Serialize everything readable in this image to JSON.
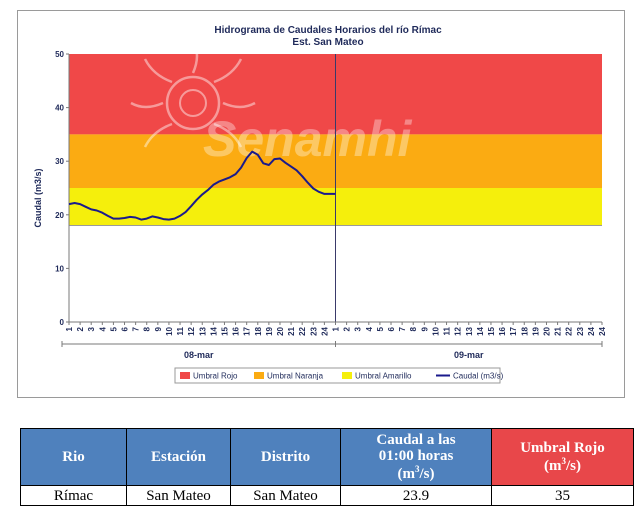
{
  "chart_data": {
    "type": "line",
    "title": "Hidrograma de Caudales Horarios del río Rímac",
    "subtitle": "Est. San Mateo",
    "xlabel": "",
    "ylabel": "Caudal (m3/s)",
    "ylim": [
      0,
      50
    ],
    "yticks": [
      0,
      10,
      20,
      30,
      40,
      50
    ],
    "x_tick_labels": [
      "1",
      "2",
      "3",
      "4",
      "5",
      "6",
      "7",
      "8",
      "9",
      "10",
      "11",
      "12",
      "13",
      "14",
      "15",
      "16",
      "17",
      "18",
      "19",
      "20",
      "21",
      "22",
      "23",
      "24",
      "1",
      "2",
      "3",
      "4",
      "5",
      "6",
      "7",
      "8",
      "9",
      "10",
      "11",
      "12",
      "13",
      "14",
      "15",
      "16",
      "17",
      "18",
      "19",
      "20",
      "21",
      "22",
      "23",
      "24"
    ],
    "day_labels": [
      "08-mar",
      "09-mar"
    ],
    "watermark": "Senamhi",
    "thresholds": [
      {
        "name": "Umbral Rojo",
        "from": 35,
        "to": 50,
        "color": "#f04848"
      },
      {
        "name": "Umbral Naranja",
        "from": 25,
        "to": 35,
        "color": "#fbab12"
      },
      {
        "name": "Umbral Amarillo",
        "from": 18,
        "to": 25,
        "color": "#f5ef0c"
      }
    ],
    "series": [
      {
        "name": "Caudal (m3/s)",
        "color": "#1a1a8c",
        "x": [
          1,
          1.5,
          2,
          2.5,
          3,
          3.5,
          4,
          4.5,
          5,
          5.5,
          6,
          6.5,
          7,
          7.5,
          8,
          8.5,
          9,
          9.5,
          10,
          10.5,
          11,
          11.5,
          12,
          12.5,
          13,
          13.5,
          14,
          14.5,
          15,
          15.5,
          16,
          16.5,
          17,
          17.5,
          18,
          18.5,
          19,
          19.5,
          20,
          20.5,
          21,
          21.5,
          22,
          22.5,
          23,
          23.5,
          24,
          24.5,
          25
        ],
        "values": [
          22,
          22.2,
          22,
          21.5,
          21,
          20.8,
          20.4,
          19.8,
          19.3,
          19.3,
          19.4,
          19.6,
          19.5,
          19.1,
          19.3,
          19.7,
          19.5,
          19.2,
          19.1,
          19.3,
          19.8,
          20.5,
          21.6,
          22.8,
          23.8,
          24.6,
          25.6,
          26.2,
          26.6,
          27.0,
          27.6,
          28.8,
          30.6,
          31.8,
          31.2,
          29.6,
          29.3,
          30.4,
          30.5,
          29.7,
          29.0,
          28.3,
          27.2,
          26.0,
          24.9,
          24.3,
          23.9,
          23.9,
          23.9
        ]
      }
    ]
  },
  "legend": [
    {
      "label": "Umbral Rojo",
      "color": "#f04848",
      "kind": "box"
    },
    {
      "label": "Umbral Naranja",
      "color": "#fbab12",
      "kind": "box"
    },
    {
      "label": "Umbral Amarillo",
      "color": "#f5ef0c",
      "kind": "box"
    },
    {
      "label": "Caudal (m3/s)",
      "color": "#1a1a8c",
      "kind": "line"
    }
  ],
  "table": {
    "headers": {
      "rio": "Rio",
      "estacion": "Estación",
      "distrito": "Distrito",
      "caudal_line1": "Caudal a las",
      "caudal_line2": "01:00 horas",
      "caudal_unit_pre": "(m",
      "caudal_unit_sup": "3",
      "caudal_unit_post": "/s)",
      "umbral_line1": "Umbral Rojo",
      "umbral_unit_pre": "(m",
      "umbral_unit_sup": "3",
      "umbral_unit_post": "/s)"
    },
    "row": {
      "rio": "Rímac",
      "estacion": "San Mateo",
      "distrito": "San Mateo",
      "caudal": "23.9",
      "umbral": "35"
    }
  }
}
